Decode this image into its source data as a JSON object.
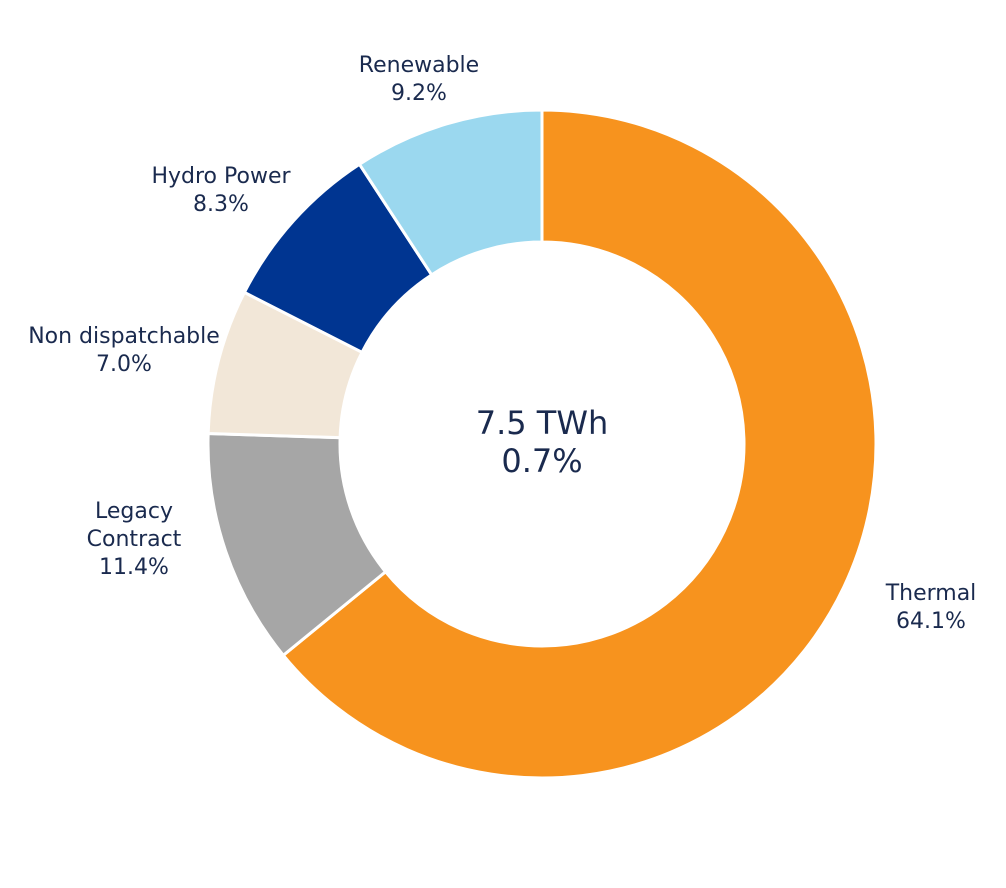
{
  "chart_data": {
    "type": "pie",
    "variant": "donut",
    "center_text": [
      "7.5 TWh",
      "0.7%"
    ],
    "slices": [
      {
        "name": "Thermal",
        "label_lines": [
          "Thermal"
        ],
        "percent_label": "64.1%",
        "value": 64.1,
        "color": "#f7931e"
      },
      {
        "name": "Legacy Contract",
        "label_lines": [
          "Legacy",
          "Contract"
        ],
        "percent_label": "11.4%",
        "value": 11.4,
        "color": "#a6a6a6"
      },
      {
        "name": "Non dispatchable",
        "label_lines": [
          "Non dispatchable"
        ],
        "percent_label": "7.0%",
        "value": 7.0,
        "color": "#f2e7d8"
      },
      {
        "name": "Hydro Power",
        "label_lines": [
          "Hydro Power"
        ],
        "percent_label": "8.3%",
        "value": 8.3,
        "color": "#003591"
      },
      {
        "name": "Renewable",
        "label_lines": [
          "Renewable"
        ],
        "percent_label": "9.2%",
        "value": 9.2,
        "color": "#9bd8ef"
      }
    ],
    "legend": "none",
    "start": "12 o'clock",
    "direction": "clockwise"
  }
}
